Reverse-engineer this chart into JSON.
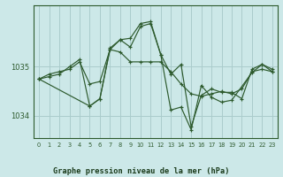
{
  "bg_color": "#cce8e8",
  "grid_color": "#aacccc",
  "line_color": "#2d5a2d",
  "marker_color": "#2d5a2d",
  "title": "Graphe pression niveau de la mer (hPa)",
  "title_color": "#1a3a1a",
  "xlim": [
    -0.5,
    23.5
  ],
  "ylim": [
    1033.55,
    1036.25
  ],
  "yticks": [
    1034,
    1035
  ],
  "xticks": [
    0,
    1,
    2,
    3,
    4,
    5,
    6,
    7,
    8,
    9,
    10,
    11,
    12,
    13,
    14,
    15,
    16,
    17,
    18,
    19,
    20,
    21,
    22,
    23
  ],
  "series": [
    {
      "x": [
        0,
        1,
        2,
        3,
        4,
        5,
        6,
        7,
        8,
        9,
        10,
        11,
        12,
        13,
        14,
        15,
        16,
        17,
        18,
        19,
        20,
        21,
        22,
        23
      ],
      "y": [
        1034.75,
        1034.85,
        1034.9,
        1034.95,
        1035.1,
        1034.65,
        1034.7,
        1035.35,
        1035.3,
        1035.1,
        1035.1,
        1035.1,
        1035.1,
        1034.9,
        1034.65,
        1034.45,
        1034.4,
        1034.45,
        1034.5,
        1034.45,
        1034.55,
        1034.9,
        1034.95,
        1034.9
      ]
    },
    {
      "x": [
        0,
        1,
        2,
        3,
        4,
        5,
        6,
        7,
        8,
        9,
        10,
        11,
        12,
        13,
        14,
        15,
        16,
        17,
        18,
        19,
        20,
        21,
        22,
        23
      ],
      "y": [
        1034.75,
        1034.8,
        1034.85,
        1035.0,
        1035.15,
        1034.2,
        1034.35,
        1035.35,
        1035.55,
        1035.4,
        1035.82,
        1035.88,
        1035.25,
        1034.85,
        1035.05,
        1033.78,
        1034.42,
        1034.55,
        1034.48,
        1034.48,
        1034.35,
        1034.95,
        1035.05,
        1034.95
      ]
    },
    {
      "x": [
        0,
        5,
        6,
        7,
        8,
        9,
        10,
        11,
        12,
        13,
        14,
        15,
        16,
        17,
        18,
        19,
        21,
        22,
        23
      ],
      "y": [
        1034.75,
        1034.2,
        1034.35,
        1035.38,
        1035.55,
        1035.58,
        1035.88,
        1035.92,
        1035.25,
        1034.12,
        1034.18,
        1033.72,
        1034.62,
        1034.38,
        1034.28,
        1034.32,
        1034.88,
        1035.05,
        1034.9
      ]
    }
  ]
}
